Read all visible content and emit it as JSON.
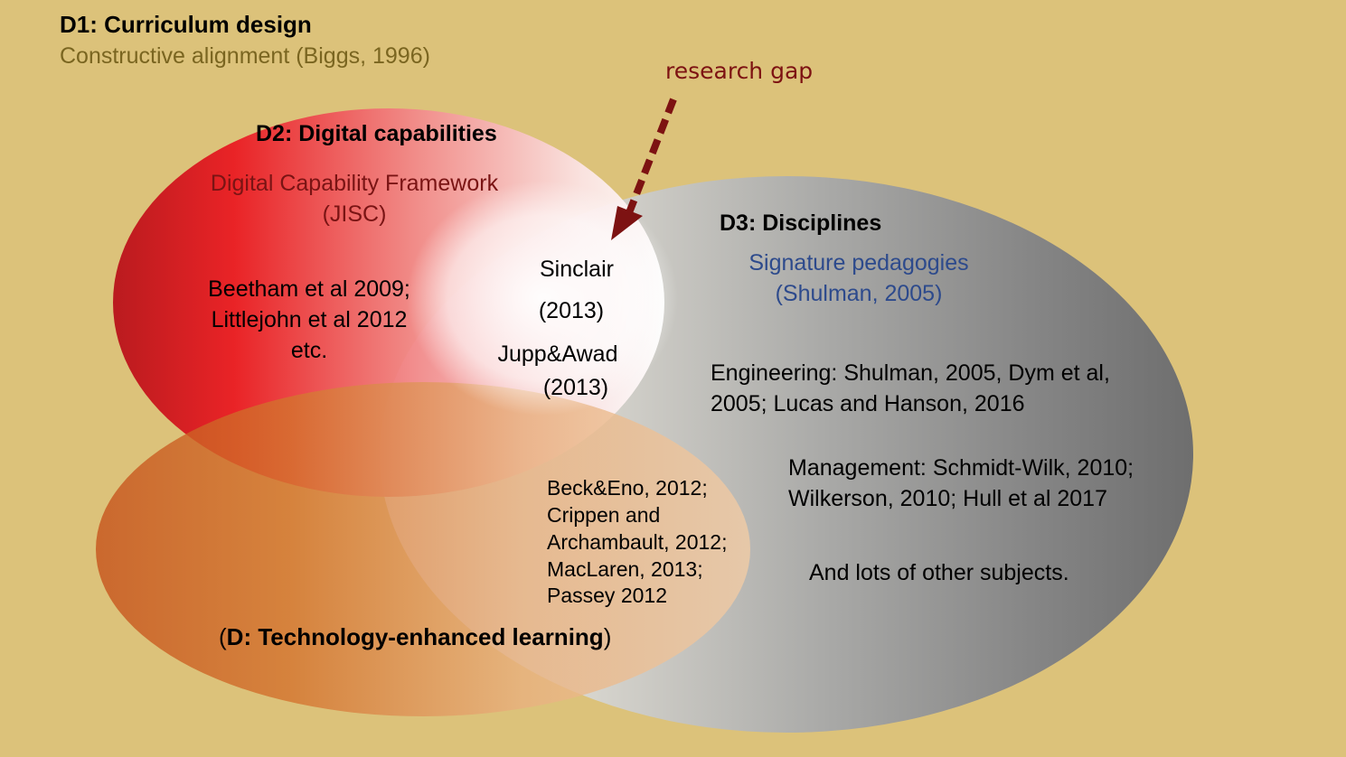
{
  "colors": {
    "background": "#dcc27a",
    "d2_red": "#e8191c",
    "d3_grey": "#7a7a7a",
    "tel_orange": "#c8561e",
    "arrow": "#7d1212",
    "subtitle_olive": "#7a6520",
    "pedagogy_blue": "#2d4a8c",
    "dcf_red": "#7a1414"
  },
  "d1": {
    "title": "D1: Curriculum design",
    "subtitle": "Constructive alignment (Biggs, 1996)"
  },
  "research_gap": {
    "label": "research gap",
    "icon": "dashed-arrow-down-left"
  },
  "d2": {
    "title": "D2: Digital capabilities",
    "framework_line1": "Digital Capability Framework",
    "framework_line2": "(JISC)",
    "refs_line1": "Beetham et al 2009;",
    "refs_line2": "Littlejohn et al 2012",
    "refs_line3": "etc."
  },
  "intersection": {
    "line1": "Sinclair",
    "line2": "(2013)",
    "line3": "Jupp&Awad",
    "line4": "(2013)"
  },
  "d3": {
    "title": "D3: Disciplines",
    "pedagogy_line1": "Signature pedagogies",
    "pedagogy_line2": "(Shulman, 2005)",
    "engineering_line1": "Engineering: Shulman, 2005, Dym et al,",
    "engineering_line2": "2005; Lucas and Hanson, 2016",
    "management_line1": "Management: Schmidt-Wilk, 2010;",
    "management_line2": "Wilkerson, 2010; Hull et al 2017",
    "other": "And lots of other subjects."
  },
  "tel_refs": {
    "line1": "Beck&Eno, 2012;",
    "line2": "Crippen and",
    "line3": "Archambault, 2012;",
    "line4": "MacLaren, 2013;",
    "line5": "Passey 2012"
  },
  "d_tel": {
    "open_paren": "(",
    "title": "D: Technology-enhanced learning",
    "close_paren": ")"
  }
}
